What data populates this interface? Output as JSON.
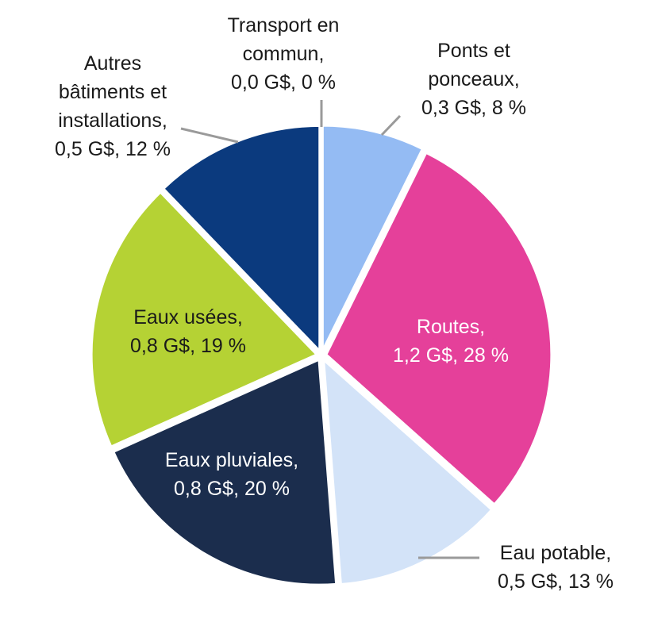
{
  "chart_data": {
    "type": "pie",
    "title": "",
    "unit": "G$",
    "slices": [
      {
        "name": "Transport en commun",
        "value": 0.0,
        "percent": 0,
        "color": "#9A9A9A",
        "label_lines": [
          "Transport en",
          "commun,",
          "0,0 G$, 0 %"
        ]
      },
      {
        "name": "Ponts et ponceaux",
        "value": 0.3,
        "percent": 8,
        "color": "#94BBF3",
        "label_lines": [
          "Ponts et",
          "ponceaux,",
          "0,3 G$, 8 %"
        ]
      },
      {
        "name": "Routes",
        "value": 1.2,
        "percent": 28,
        "color": "#E5409A",
        "label_lines": [
          "Routes,",
          "1,2 G$, 28 %"
        ]
      },
      {
        "name": "Eau potable",
        "value": 0.5,
        "percent": 13,
        "color": "#D3E3F8",
        "label_lines": [
          "Eau potable,",
          "0,5 G$, 13 %"
        ]
      },
      {
        "name": "Eaux pluviales",
        "value": 0.8,
        "percent": 20,
        "color": "#1B2D4D",
        "label_lines": [
          "Eaux pluviales,",
          "0,8 G$, 20 %"
        ]
      },
      {
        "name": "Eaux usées",
        "value": 0.8,
        "percent": 19,
        "color": "#B5D234",
        "label_lines": [
          "Eaux usées,",
          "0,8 G$, 19 %"
        ]
      },
      {
        "name": "Autres bâtiments et installations",
        "value": 0.5,
        "percent": 12,
        "color": "#0B3A7E",
        "label_lines": [
          "Autres",
          "bâtiments et",
          "installations,",
          "0,5 G$, 12 %"
        ]
      }
    ]
  }
}
